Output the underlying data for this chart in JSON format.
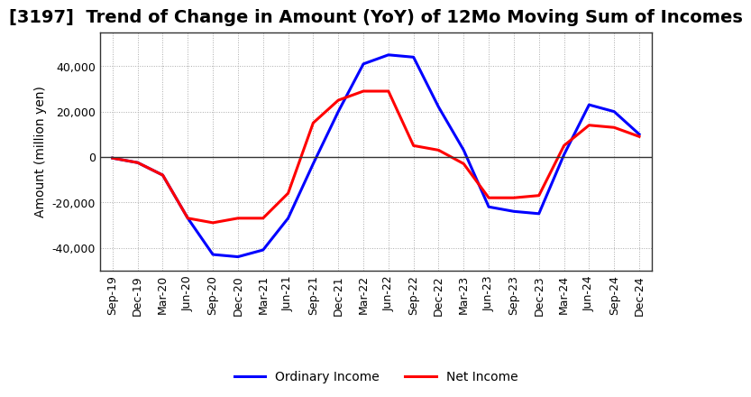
{
  "title": "[3197]  Trend of Change in Amount (YoY) of 12Mo Moving Sum of Incomes",
  "ylabel": "Amount (million yen)",
  "xlabels": [
    "Sep-19",
    "Dec-19",
    "Mar-20",
    "Jun-20",
    "Sep-20",
    "Dec-20",
    "Mar-21",
    "Jun-21",
    "Sep-21",
    "Dec-21",
    "Mar-22",
    "Jun-22",
    "Sep-22",
    "Dec-22",
    "Mar-23",
    "Jun-23",
    "Sep-23",
    "Dec-23",
    "Mar-24",
    "Jun-24",
    "Sep-24",
    "Dec-24"
  ],
  "ordinary_income": [
    -500,
    -2500,
    -8000,
    -27000,
    -43000,
    -44000,
    -41000,
    -27000,
    -3000,
    20000,
    41000,
    45000,
    44000,
    22000,
    3000,
    -22000,
    -24000,
    -25000,
    1000,
    23000,
    20000,
    10000
  ],
  "net_income": [
    -500,
    -2500,
    -8000,
    -27000,
    -29000,
    -27000,
    -27000,
    -16000,
    15000,
    25000,
    29000,
    29000,
    5000,
    3000,
    -3000,
    -18000,
    -18000,
    -17000,
    5000,
    14000,
    13000,
    9000
  ],
  "ordinary_color": "#0000ff",
  "net_color": "#ff0000",
  "ylim": [
    -50000,
    55000
  ],
  "yticks": [
    -40000,
    -20000,
    0,
    20000,
    40000
  ],
  "background_color": "#ffffff",
  "grid_color": "#aaaaaa",
  "title_fontsize": 14,
  "label_fontsize": 10,
  "tick_fontsize": 9,
  "legend_fontsize": 10
}
